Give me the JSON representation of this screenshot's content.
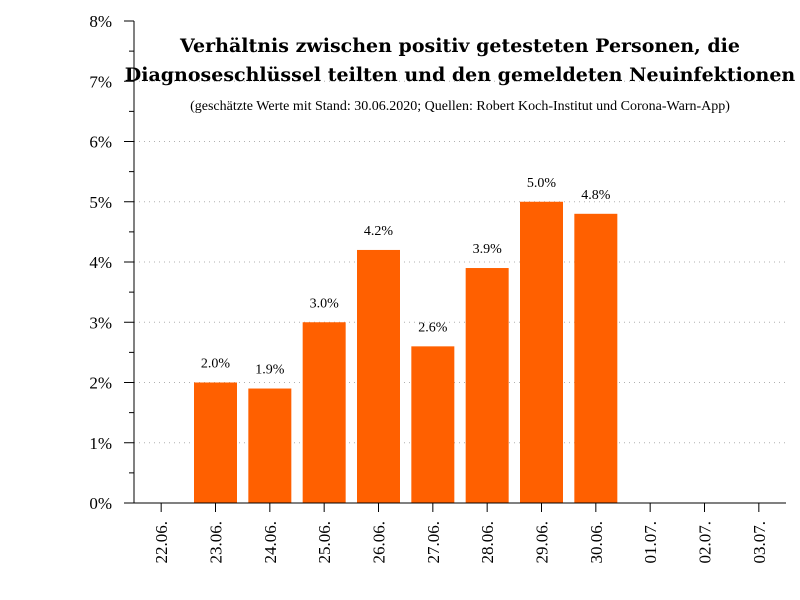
{
  "chart_data": {
    "type": "bar",
    "title_line1": "Verhältnis zwischen positiv getesteten Personen, die",
    "title_line2": "Diagnoseschlüssel teilten und den gemeldeten Neuinfektionen",
    "subtitle": "(geschätzte Werte mit Stand: 30.06.2020; Quellen: Robert Koch-Institut und Corona-Warn-App)",
    "xlabel": "",
    "ylabel": "",
    "ylim": [
      0,
      8
    ],
    "yticks": [
      0,
      1,
      2,
      3,
      4,
      5,
      6,
      7,
      8
    ],
    "ytick_labels": [
      "0%",
      "1%",
      "2%",
      "3%",
      "4%",
      "5%",
      "6%",
      "7%",
      "8%"
    ],
    "categories": [
      "22.06.",
      "23.06.",
      "24.06.",
      "25.06.",
      "26.06.",
      "27.06.",
      "28.06.",
      "29.06.",
      "30.06.",
      "01.07.",
      "02.07.",
      "03.07."
    ],
    "values": [
      null,
      2.0,
      1.9,
      3.0,
      4.2,
      2.6,
      3.9,
      5.0,
      4.8,
      null,
      null,
      null
    ],
    "value_labels": [
      "",
      "2.0%",
      "1.9%",
      "3.0%",
      "4.2%",
      "2.6%",
      "3.9%",
      "5.0%",
      "4.8%",
      "",
      "",
      ""
    ],
    "bar_color": "#ff6000",
    "grid": true
  }
}
